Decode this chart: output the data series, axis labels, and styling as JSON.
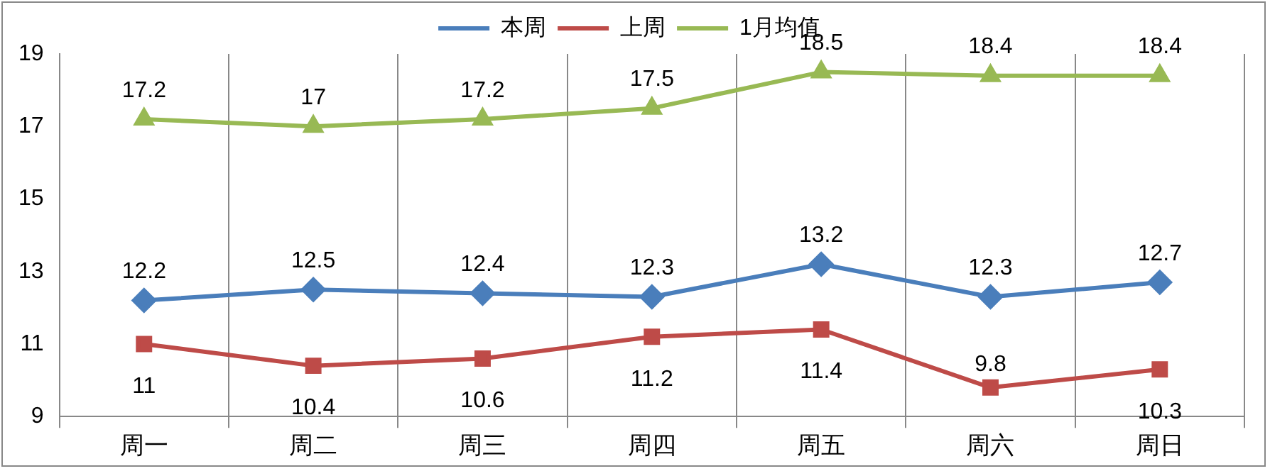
{
  "chart_data": {
    "type": "line",
    "categories": [
      "周一",
      "周二",
      "周三",
      "周四",
      "周五",
      "周六",
      "周日"
    ],
    "series": [
      {
        "name": "本周",
        "color": "#4a7ebb",
        "marker": "diamond",
        "values": [
          12.2,
          12.5,
          12.4,
          12.3,
          13.2,
          12.3,
          12.7
        ]
      },
      {
        "name": "上周",
        "color": "#be4b48",
        "marker": "square",
        "values": [
          11,
          10.4,
          10.6,
          11.2,
          11.4,
          9.8,
          10.3
        ]
      },
      {
        "name": "1月均值",
        "color": "#98b954",
        "marker": "triangle",
        "values": [
          17.2,
          17,
          17.2,
          17.5,
          18.5,
          18.4,
          18.4
        ]
      }
    ],
    "ylim": [
      9,
      19
    ],
    "yticks": [
      9,
      11,
      13,
      15,
      17,
      19
    ],
    "grid": "x",
    "legend": "top",
    "data_labels": true
  }
}
